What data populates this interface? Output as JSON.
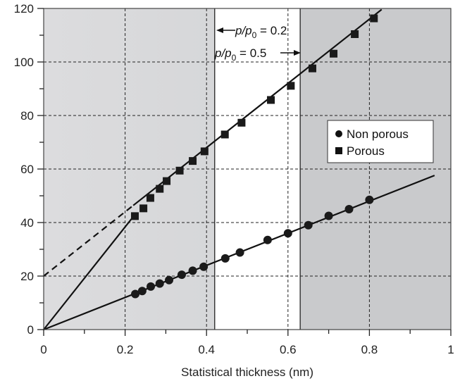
{
  "chart_data": {
    "type": "scatter",
    "title": "",
    "xlabel": "Statistical thickness (nm)",
    "ylabel": "",
    "xlim": [
      0,
      1
    ],
    "ylim": [
      0,
      120
    ],
    "xticks": [
      0,
      0.2,
      0.4,
      0.6,
      0.8,
      1
    ],
    "xtick_labels": [
      "0",
      "0.2",
      "0.4",
      "0.6",
      "0.8",
      "1"
    ],
    "yticks": [
      0,
      20,
      40,
      60,
      80,
      100,
      120
    ],
    "ytick_labels": [
      "0",
      "20",
      "40",
      "60",
      "80",
      "100",
      "120"
    ],
    "grid": true,
    "legend_position": "right",
    "regions": [
      {
        "from": 0,
        "to": 0.42,
        "shade": "light-gray"
      },
      {
        "from": 0.42,
        "to": 0.63,
        "shade": "white"
      },
      {
        "from": 0.63,
        "to": 1,
        "shade": "gray"
      }
    ],
    "annotations": [
      {
        "prefix": "p/p",
        "sub": "0",
        "suffix": " = 0.2",
        "arrow": "left"
      },
      {
        "prefix": "p/p",
        "sub": "0",
        "suffix": " = 0.5",
        "arrow": "right"
      }
    ],
    "series": [
      {
        "name": "Non porous",
        "marker": "circle",
        "x": [
          0.225,
          0.242,
          0.263,
          0.285,
          0.308,
          0.339,
          0.366,
          0.393,
          0.446,
          0.482,
          0.55,
          0.6,
          0.65,
          0.7,
          0.75,
          0.8
        ],
        "y": [
          13.3,
          14.4,
          16.1,
          17.2,
          18.5,
          20.5,
          22.0,
          23.5,
          26.6,
          28.8,
          33.5,
          36.0,
          39.0,
          42.5,
          45.0,
          48.5
        ],
        "fit_line": {
          "x": [
            0,
            0.96
          ],
          "y": [
            0,
            57.6
          ],
          "style": "solid"
        }
      },
      {
        "name": "Porous",
        "marker": "square",
        "x": [
          0.224,
          0.245,
          0.262,
          0.285,
          0.302,
          0.334,
          0.366,
          0.395,
          0.445,
          0.486,
          0.558,
          0.607,
          0.66,
          0.712,
          0.764,
          0.811
        ],
        "y": [
          42.4,
          45.3,
          49.2,
          52.6,
          55.5,
          59.4,
          63.0,
          66.6,
          72.9,
          77.3,
          85.8,
          91.1,
          97.6,
          103.1,
          110.4,
          116.3
        ],
        "fit_line": {
          "x": [
            0.22,
            0.83
          ],
          "y": [
            46.4,
            119.6
          ],
          "style": "solid"
        },
        "extrapolation": {
          "x": [
            0,
            0.22
          ],
          "y": [
            20,
            46.4
          ],
          "style": "dashed"
        },
        "origin_line": {
          "x": [
            0,
            0.22
          ],
          "y": [
            0,
            42.2
          ],
          "style": "solid"
        }
      }
    ]
  }
}
